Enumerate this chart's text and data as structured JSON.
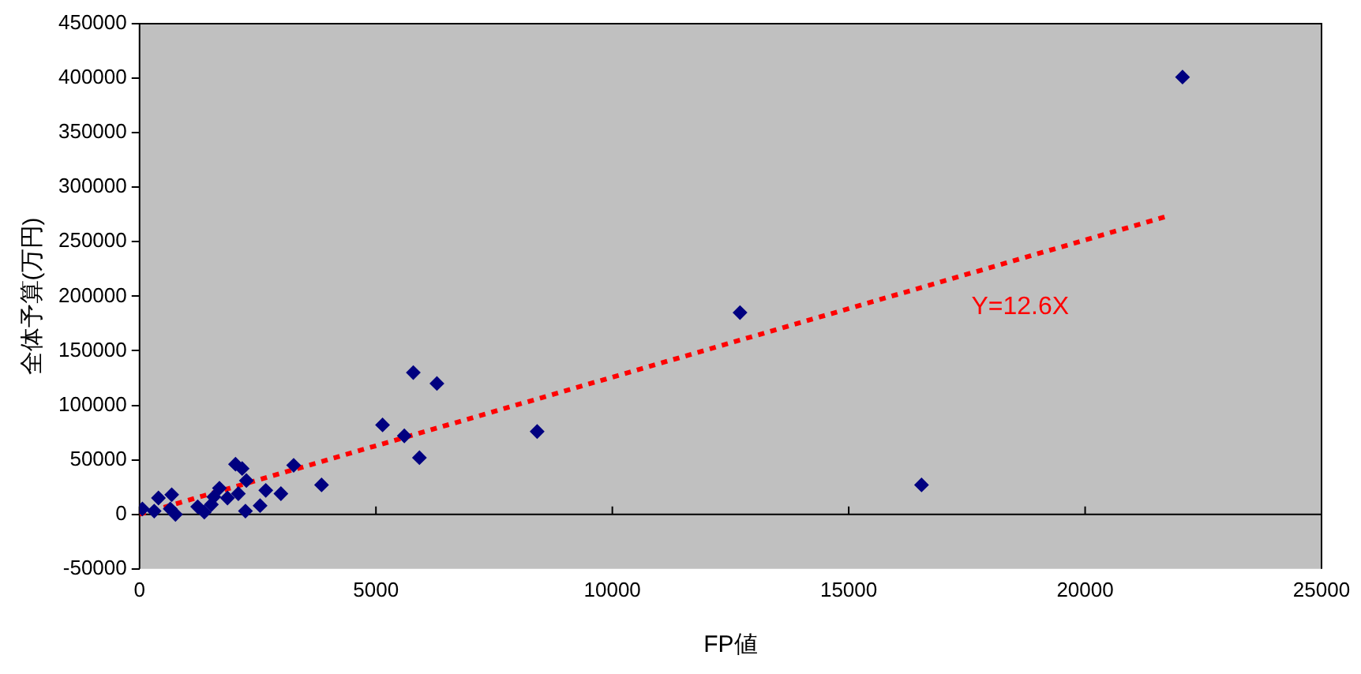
{
  "chart_data": {
    "type": "scatter",
    "xlabel": "FP値",
    "ylabel": "全体予算(万円)",
    "xlim": [
      0,
      25000
    ],
    "xticks": [
      0,
      5000,
      10000,
      15000,
      20000,
      25000
    ],
    "ylim": [
      -50000,
      450000
    ],
    "yticks": [
      -50000,
      0,
      50000,
      100000,
      150000,
      200000,
      250000,
      300000,
      350000,
      400000,
      450000
    ],
    "legend": false,
    "series": [
      {
        "color": "#000080",
        "marker": "diamond",
        "x": [
          60,
          310,
          400,
          650,
          680,
          760,
          1230,
          1370,
          1520,
          1570,
          1690,
          1860,
          2030,
          2090,
          2170,
          2240,
          2260,
          2550,
          2670,
          2990,
          3260,
          3850,
          5140,
          5600,
          5790,
          5920,
          6290,
          8410,
          12700,
          16540,
          22060
        ],
        "values": [
          5000,
          3000,
          15000,
          5000,
          18000,
          0,
          7000,
          2000,
          9000,
          16000,
          24000,
          15000,
          46000,
          19000,
          42000,
          3000,
          31000,
          8000,
          22000,
          19000,
          45000,
          27000,
          82000,
          72000,
          130000,
          52000,
          120000,
          76000,
          185000,
          27000,
          401000
        ]
      },
      {
        "type": "line",
        "color": "#ff0000",
        "marker": "none",
        "line_style": "dotted",
        "x": [
          0,
          21700
        ],
        "values": [
          0,
          273000
        ]
      }
    ],
    "annotations": [
      "Y=12.6X"
    ]
  }
}
